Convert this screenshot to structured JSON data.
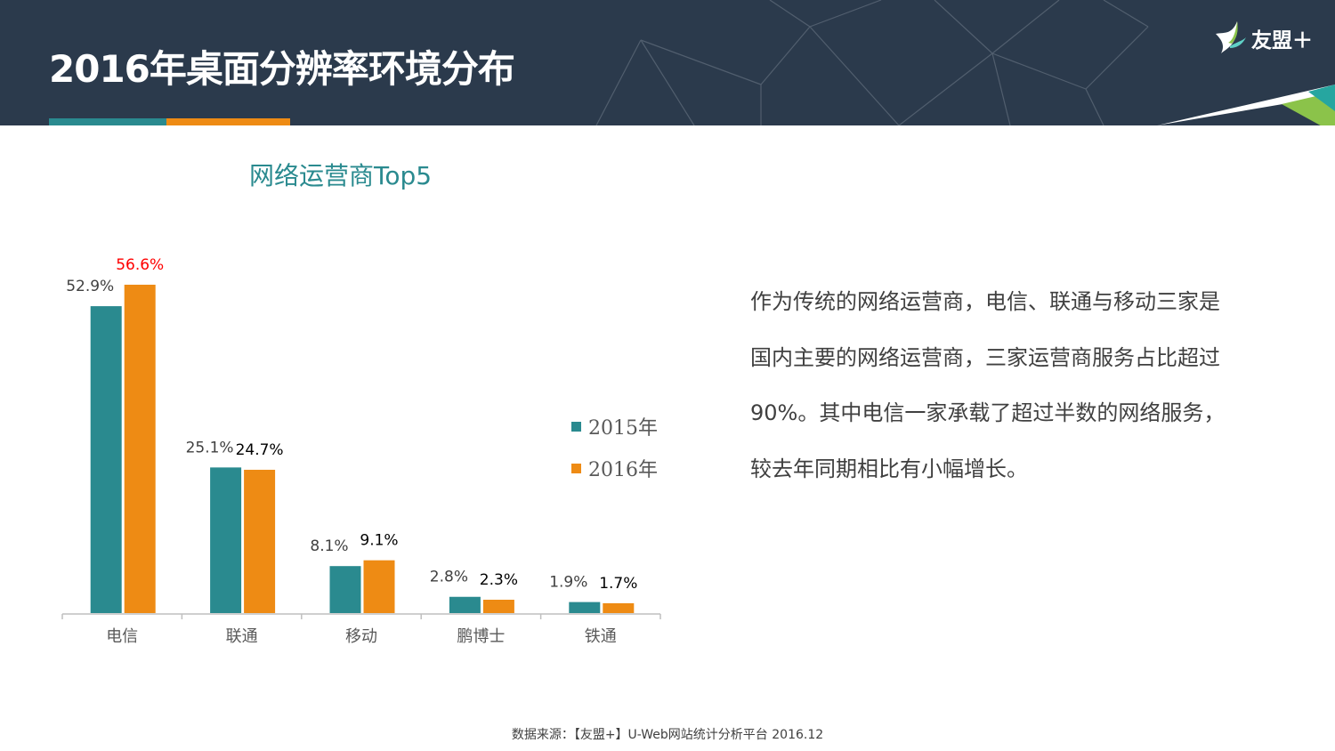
{
  "header": {
    "title": "2016年桌面分辨率环境分布",
    "logo_text": "友盟＋",
    "accent_colors": [
      "#2a8a8f",
      "#ee8b14"
    ],
    "background_color": "#2b3a4c"
  },
  "chart_title": "网络运营商Top5",
  "chart_title_color": "#2a8a8f",
  "chart_data": {
    "type": "bar",
    "categories": [
      "电信",
      "联通",
      "移动",
      "鹏博士",
      "铁通"
    ],
    "series": [
      {
        "name": "2015年",
        "values": [
          52.9,
          25.1,
          8.1,
          2.8,
          1.9
        ],
        "labels": [
          "52.9%",
          "25.1%",
          "8.1%",
          "2.8%",
          "1.9%"
        ],
        "color": "#2a8a8f"
      },
      {
        "name": "2016年",
        "values": [
          56.6,
          24.7,
          9.1,
          2.3,
          1.7
        ],
        "labels": [
          "56.6%",
          "24.7%",
          "9.1%",
          "2.3%",
          "1.7%"
        ],
        "color": "#ee8b14"
      }
    ],
    "highlight_label": {
      "series": 1,
      "index": 0,
      "color": "#ff0000"
    },
    "ylim": [
      0,
      60
    ],
    "grid": false,
    "legend_position": "right"
  },
  "description": "作为传统的网络运营商，电信、联通与移动三家是国内主要的网络运营商，三家运营商服务占比超过90%。其中电信一家承载了超过半数的网络服务，较去年同期相比有小幅增长。",
  "source": "数据来源：【友盟+】U-Web网站统计分析平台 2016.12"
}
